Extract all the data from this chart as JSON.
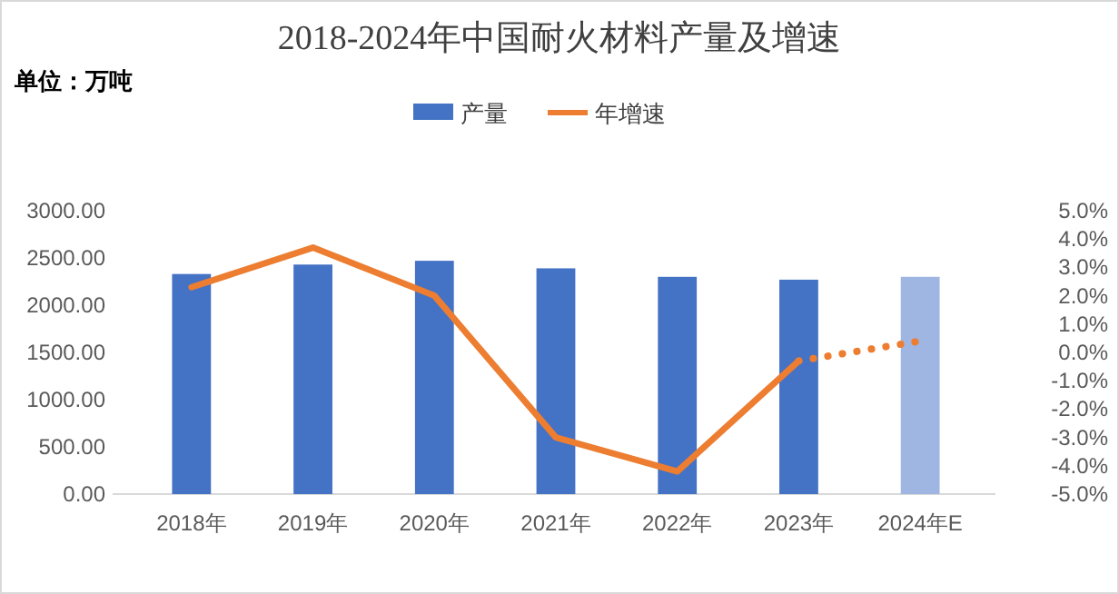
{
  "chart_data": {
    "type": "bar",
    "title": "2018-2024年中国耐火材料产量及增速",
    "annotations": [
      "单位：万吨"
    ],
    "categories": [
      "2018年",
      "2019年",
      "2020年",
      "2021年",
      "2022年",
      "2023年",
      "2024年E"
    ],
    "series": [
      {
        "name": "产量",
        "color": "#4472c4",
        "colors": [
          "#4472c4",
          "#4472c4",
          "#4472c4",
          "#4472c4",
          "#4472c4",
          "#4472c4",
          "#9fb5e2"
        ],
        "values": [
          2330,
          2430,
          2470,
          2390,
          2300,
          2270,
          2300
        ]
      },
      {
        "name": "年增速",
        "type": "line",
        "axis": "y2",
        "color": "#ed7d31",
        "line_style": "solid",
        "values": [
          2.3,
          3.7,
          2.0,
          -3.0,
          -4.2,
          -0.3,
          null
        ]
      },
      {
        "type": "line",
        "axis": "y2",
        "color": "#ed7d31",
        "line_style": "dotted",
        "values": [
          null,
          null,
          null,
          null,
          null,
          -0.3,
          0.4
        ]
      }
    ],
    "ylim": [
      0,
      3000
    ],
    "yticks": [
      {
        "value": 0,
        "label": "0.00"
      },
      {
        "value": 500,
        "label": "500.00"
      },
      {
        "value": 1000,
        "label": "1000.00"
      },
      {
        "value": 1500,
        "label": "1500.00"
      },
      {
        "value": 2000,
        "label": "2000.00"
      },
      {
        "value": 2500,
        "label": "2500.00"
      },
      {
        "value": 3000,
        "label": "3000.00"
      }
    ],
    "y2lim": [
      -5,
      5
    ],
    "y2ticks": [
      {
        "value": -5,
        "label": "-5.0%"
      },
      {
        "value": -4,
        "label": "-4.0%"
      },
      {
        "value": -3,
        "label": "-3.0%"
      },
      {
        "value": -2,
        "label": "-2.0%"
      },
      {
        "value": -1,
        "label": "-1.0%"
      },
      {
        "value": 0,
        "label": "0.0%"
      },
      {
        "value": 1,
        "label": "1.0%"
      },
      {
        "value": 2,
        "label": "2.0%"
      },
      {
        "value": 3,
        "label": "3.0%"
      },
      {
        "value": 4,
        "label": "4.0%"
      },
      {
        "value": 5,
        "label": "5.0%"
      }
    ],
    "legend": "top"
  }
}
